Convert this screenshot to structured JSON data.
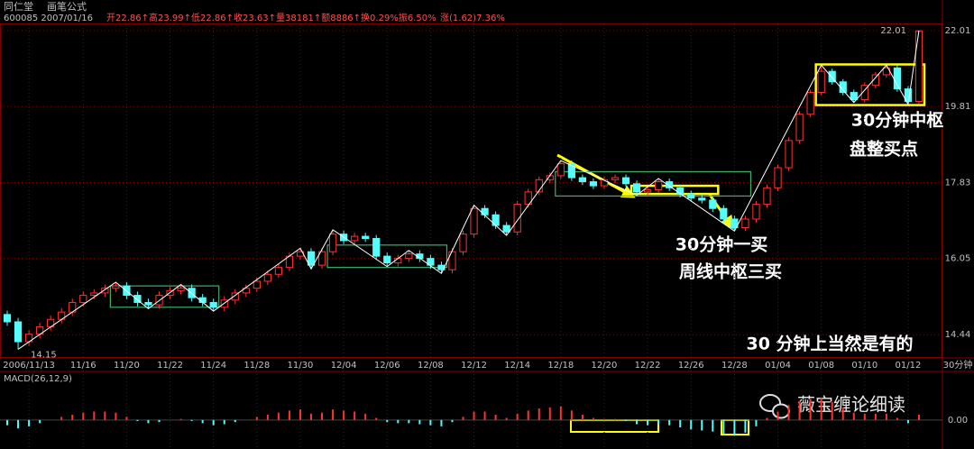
{
  "header": {
    "name": "同仁堂",
    "formula": "画笔公式",
    "code_date": "600085 2007/01/16",
    "quote": "开22.86↑高23.99↑低22.86↑收23.63↑量38181↑额8886↑换0.29%振6.50%",
    "change": "涨(1.62)7.36%"
  },
  "annotations": [
    "30分钟中枢",
    "盘整买点",
    "30分钟一买",
    "周线中枢三买",
    "30 分钟上当然是有的"
  ],
  "watermark": "薇宝缠论细读",
  "chart_data": [
    {
      "type": "candlestick",
      "open": [
        14.85,
        14.7,
        14.3,
        14.45,
        14.6,
        14.75,
        14.9,
        15.1,
        15.25,
        15.3,
        15.4,
        15.45,
        15.25,
        15.1,
        15.05,
        15.25,
        15.35,
        15.4,
        15.2,
        15.1,
        15.0,
        15.15,
        15.3,
        15.4,
        15.55,
        15.7,
        15.85,
        16.1,
        16.2,
        15.9,
        16.2,
        16.6,
        16.45,
        16.55,
        16.5,
        16.1,
        15.95,
        16.05,
        16.15,
        16.05,
        15.9,
        15.8,
        16.2,
        16.6,
        17.2,
        17.05,
        16.8,
        16.65,
        17.3,
        17.6,
        17.9,
        18.0,
        18.3,
        17.95,
        17.85,
        17.75,
        17.9,
        17.95,
        17.8,
        17.6,
        17.65,
        17.85,
        17.7,
        17.55,
        17.45,
        17.4,
        17.2,
        16.95,
        16.75,
        16.95,
        17.3,
        17.7,
        18.2,
        18.9,
        19.6,
        20.2,
        20.8,
        20.5,
        20.2,
        20.0,
        20.4,
        20.7,
        20.9,
        20.3,
        19.95
      ],
      "high": [
        14.93,
        14.78,
        14.53,
        14.68,
        14.83,
        14.98,
        15.18,
        15.33,
        15.38,
        15.48,
        15.53,
        15.53,
        15.33,
        15.18,
        15.33,
        15.43,
        15.48,
        15.48,
        15.28,
        15.18,
        15.23,
        15.38,
        15.48,
        15.63,
        15.78,
        15.93,
        16.18,
        16.28,
        16.28,
        16.28,
        16.7,
        16.68,
        16.63,
        16.63,
        16.58,
        16.18,
        16.13,
        16.23,
        16.23,
        16.13,
        15.98,
        16.28,
        16.68,
        17.28,
        17.28,
        17.13,
        16.88,
        17.38,
        17.68,
        17.98,
        18.08,
        18.38,
        18.38,
        18.03,
        17.93,
        17.98,
        18.03,
        18.03,
        17.88,
        17.73,
        17.93,
        17.93,
        17.78,
        17.63,
        17.53,
        17.48,
        17.28,
        17.03,
        17.03,
        17.38,
        17.78,
        18.28,
        18.98,
        19.68,
        20.28,
        20.98,
        20.88,
        20.58,
        20.28,
        20.48,
        20.78,
        20.98,
        20.98,
        20.38,
        22.01
      ],
      "low": [
        14.62,
        14.15,
        14.22,
        14.37,
        14.52,
        14.67,
        14.82,
        15.02,
        15.17,
        15.22,
        15.32,
        15.17,
        15.02,
        14.97,
        14.97,
        15.17,
        15.27,
        15.12,
        15.02,
        14.92,
        14.92,
        15.07,
        15.22,
        15.32,
        15.47,
        15.62,
        15.77,
        16.02,
        15.82,
        15.82,
        16.12,
        16.37,
        16.37,
        16.42,
        16.02,
        15.87,
        15.87,
        15.97,
        15.97,
        15.82,
        15.72,
        15.72,
        16.12,
        16.52,
        16.97,
        16.72,
        16.57,
        16.57,
        17.22,
        17.52,
        17.82,
        17.92,
        17.87,
        17.77,
        17.67,
        17.67,
        17.82,
        17.72,
        17.52,
        17.52,
        17.57,
        17.62,
        17.47,
        17.37,
        17.32,
        17.12,
        16.87,
        16.67,
        16.67,
        16.87,
        17.22,
        17.62,
        18.12,
        18.82,
        19.52,
        20.12,
        20.42,
        20.12,
        19.92,
        19.92,
        20.32,
        20.62,
        20.22,
        19.87,
        19.87
      ],
      "close": [
        14.7,
        14.3,
        14.45,
        14.6,
        14.75,
        14.9,
        15.1,
        15.25,
        15.3,
        15.4,
        15.45,
        15.25,
        15.1,
        15.05,
        15.25,
        15.35,
        15.4,
        15.2,
        15.1,
        15.0,
        15.15,
        15.3,
        15.4,
        15.55,
        15.7,
        15.85,
        16.1,
        16.2,
        15.9,
        16.2,
        16.6,
        16.45,
        16.55,
        16.5,
        16.1,
        15.95,
        16.05,
        16.15,
        16.05,
        15.9,
        15.8,
        16.2,
        16.6,
        17.2,
        17.05,
        16.8,
        16.65,
        17.3,
        17.6,
        17.9,
        18.0,
        18.3,
        17.95,
        17.85,
        17.75,
        17.9,
        17.95,
        17.8,
        17.6,
        17.65,
        17.85,
        17.7,
        17.55,
        17.45,
        17.4,
        17.2,
        16.95,
        16.75,
        16.95,
        17.3,
        17.7,
        18.2,
        18.9,
        19.6,
        20.2,
        20.8,
        20.5,
        20.2,
        20.0,
        20.4,
        20.7,
        20.9,
        20.3,
        19.95,
        22.0
      ],
      "up_color": "#ff3232",
      "down_color": "#54fcfc",
      "log_scale": true,
      "grid": true,
      "ylim": [
        14.0,
        22.2
      ],
      "yticks": [
        14.44,
        16.05,
        17.83,
        19.81,
        22.01
      ],
      "xticks": [
        {
          "value": 2,
          "label": "2006/11/13"
        },
        {
          "value": 7,
          "label": "11/16"
        },
        {
          "value": 11,
          "label": "11/20"
        },
        {
          "value": 15,
          "label": "11/22"
        },
        {
          "value": 19,
          "label": "11/24"
        },
        {
          "value": 23,
          "label": "11/28"
        },
        {
          "value": 27,
          "label": "11/30"
        },
        {
          "value": 31,
          "label": "12/04"
        },
        {
          "value": 35,
          "label": "12/06"
        },
        {
          "value": 39,
          "label": "12/08"
        },
        {
          "value": 43,
          "label": "12/12"
        },
        {
          "value": 47,
          "label": "12/14"
        },
        {
          "value": 51,
          "label": "12/18"
        },
        {
          "value": 55,
          "label": "12/20"
        },
        {
          "value": 59,
          "label": "12/22"
        },
        {
          "value": 63,
          "label": "12/26"
        },
        {
          "value": 67,
          "label": "12/28"
        },
        {
          "value": 71,
          "label": "01/04"
        },
        {
          "value": 75,
          "label": "01/08"
        },
        {
          "value": 79,
          "label": "01/10"
        },
        {
          "value": 83,
          "label": "01/12"
        }
      ],
      "period": "30分钟",
      "bi": {
        "color": "#ffffff",
        "x": [
          1,
          10,
          13,
          16,
          19,
          27,
          28,
          30,
          35,
          37,
          40,
          43,
          46,
          51,
          58,
          60,
          67,
          75,
          78,
          81,
          83,
          84
        ],
        "y": [
          14.15,
          15.53,
          14.97,
          15.48,
          14.92,
          16.28,
          15.82,
          16.7,
          15.87,
          16.23,
          15.72,
          17.28,
          16.57,
          18.38,
          17.52,
          17.93,
          16.67,
          20.98,
          19.92,
          20.98,
          19.87,
          22.01
        ]
      },
      "zones": [
        {
          "x": [
            10,
            19
          ],
          "y": [
            15.0,
            15.45
          ],
          "color": "#3fae6a"
        },
        {
          "x": [
            30,
            40
          ],
          "y": [
            15.85,
            16.35
          ],
          "color": "#3fae6a"
        },
        {
          "x": [
            51,
            68
          ],
          "y": [
            17.5,
            18.1
          ],
          "color": "#3fae6a"
        },
        {
          "x": [
            58,
            65
          ],
          "y": [
            17.55,
            17.75
          ],
          "color": "#ffff00"
        },
        {
          "x": [
            75,
            84
          ],
          "y": [
            19.85,
            21.0
          ],
          "color": "#ffff00"
        }
      ]
    },
    {
      "type": "bar",
      "title": "MACD(26,12,9)",
      "values": [
        -0.05,
        -0.08,
        -0.06,
        -0.03,
        0,
        0.03,
        0.05,
        0.07,
        0.08,
        0.08,
        0.07,
        0.03,
        -0.01,
        -0.03,
        -0.02,
        0,
        0.01,
        -0.01,
        -0.03,
        -0.05,
        -0.04,
        -0.02,
        0,
        0.03,
        0.05,
        0.07,
        0.09,
        0.1,
        0.06,
        0.07,
        0.1,
        0.09,
        0.08,
        0.06,
        0.02,
        -0.02,
        -0.03,
        -0.03,
        -0.04,
        -0.05,
        -0.06,
        -0.02,
        0.03,
        0.08,
        0.08,
        0.05,
        0.02,
        0.06,
        0.09,
        0.11,
        0.12,
        0.13,
        0.09,
        0.05,
        0.02,
        0.01,
        0.01,
        -0.01,
        -0.04,
        -0.05,
        -0.04,
        -0.05,
        -0.07,
        -0.09,
        -0.1,
        -0.11,
        -0.13,
        -0.15,
        -0.12,
        -0.06,
        0.02,
        0.08,
        0.14,
        0.18,
        0.2,
        0.21,
        0.17,
        0.12,
        0.07,
        0.06,
        0.06,
        0.06,
        0.02,
        -0.03,
        0.05
      ],
      "up_color": "#ff3232",
      "down_color": "#54fcfc",
      "ylim": [
        -0.25,
        0.35
      ],
      "yticks": [
        {
          "value": 0,
          "label": "0.00"
        }
      ]
    }
  ]
}
